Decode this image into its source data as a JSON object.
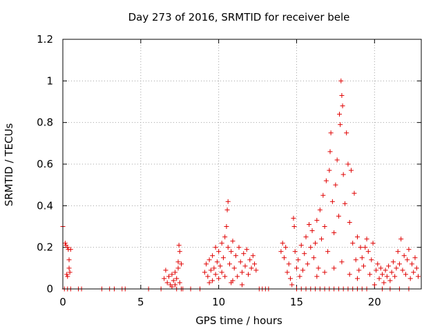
{
  "chart_data": {
    "type": "scatter",
    "title": "Day 273 of 2016, SRMTID for receiver bele",
    "xlabel": "GPS time / hours",
    "ylabel": "SRMTID / TECUs",
    "xlim": [
      0,
      23
    ],
    "ylim": [
      0,
      1.2
    ],
    "xticks": [
      0,
      5,
      10,
      15,
      20
    ],
    "xtick_labels": [
      "0",
      "5",
      "10",
      "15",
      "20"
    ],
    "yticks": [
      0,
      0.2,
      0.4,
      0.6,
      0.8,
      1.0,
      1.2
    ],
    "ytick_labels": [
      "0",
      "0.2",
      "0.4",
      "0.6",
      "0.8",
      "1",
      "1.2"
    ],
    "grid": true,
    "marker": "+",
    "color": "#e00000",
    "series": [
      {
        "name": "SRMTID",
        "points": [
          [
            0.0,
            0.3
          ],
          [
            0.1,
            0.0
          ],
          [
            0.15,
            0.22
          ],
          [
            0.2,
            0.21
          ],
          [
            0.25,
            0.07
          ],
          [
            0.3,
            0.2
          ],
          [
            0.3,
            0.06
          ],
          [
            0.35,
            0.19
          ],
          [
            0.4,
            0.1
          ],
          [
            0.4,
            0.14
          ],
          [
            0.45,
            0.08
          ],
          [
            0.5,
            0.19
          ],
          [
            0.5,
            0.0
          ],
          [
            0.3,
            0.0
          ],
          [
            1.0,
            0.0
          ],
          [
            1.2,
            0.0
          ],
          [
            2.5,
            0.0
          ],
          [
            3.0,
            0.0
          ],
          [
            3.3,
            0.0
          ],
          [
            3.8,
            0.0
          ],
          [
            4.0,
            0.0
          ],
          [
            5.5,
            0.0
          ],
          [
            6.3,
            0.0
          ],
          [
            6.5,
            0.05
          ],
          [
            6.6,
            0.09
          ],
          [
            6.7,
            0.03
          ],
          [
            6.8,
            0.06
          ],
          [
            6.9,
            0.02
          ],
          [
            7.0,
            0.07
          ],
          [
            7.0,
            0.01
          ],
          [
            7.1,
            0.04
          ],
          [
            7.2,
            0.08
          ],
          [
            7.2,
            0.02
          ],
          [
            7.3,
            0.05
          ],
          [
            7.3,
            0.0
          ],
          [
            7.4,
            0.1
          ],
          [
            7.4,
            0.13
          ],
          [
            7.45,
            0.21
          ],
          [
            7.5,
            0.18
          ],
          [
            7.5,
            0.03
          ],
          [
            7.6,
            0.12
          ],
          [
            7.6,
            0.0
          ],
          [
            7.7,
            0.0
          ],
          [
            8.2,
            0.0
          ],
          [
            8.8,
            0.0
          ],
          [
            9.1,
            0.08
          ],
          [
            9.2,
            0.12
          ],
          [
            9.3,
            0.06
          ],
          [
            9.4,
            0.14
          ],
          [
            9.5,
            0.09
          ],
          [
            9.6,
            0.16
          ],
          [
            9.6,
            0.04
          ],
          [
            9.7,
            0.1
          ],
          [
            9.8,
            0.2
          ],
          [
            9.8,
            0.07
          ],
          [
            9.9,
            0.13
          ],
          [
            10.0,
            0.18
          ],
          [
            10.0,
            0.05
          ],
          [
            10.1,
            0.11
          ],
          [
            10.2,
            0.22
          ],
          [
            10.2,
            0.08
          ],
          [
            10.3,
            0.15
          ],
          [
            10.4,
            0.25
          ],
          [
            10.4,
            0.06
          ],
          [
            10.5,
            0.3
          ],
          [
            10.55,
            0.38
          ],
          [
            10.6,
            0.42
          ],
          [
            10.6,
            0.2
          ],
          [
            10.7,
            0.12
          ],
          [
            10.8,
            0.18
          ],
          [
            10.8,
            0.03
          ],
          [
            10.9,
            0.23
          ],
          [
            11.0,
            0.1
          ],
          [
            11.1,
            0.16
          ],
          [
            11.2,
            0.06
          ],
          [
            11.3,
            0.2
          ],
          [
            11.4,
            0.13
          ],
          [
            11.5,
            0.08
          ],
          [
            11.6,
            0.17
          ],
          [
            11.7,
            0.11
          ],
          [
            11.8,
            0.19
          ],
          [
            11.9,
            0.07
          ],
          [
            12.0,
            0.14
          ],
          [
            12.1,
            0.1
          ],
          [
            12.2,
            0.16
          ],
          [
            12.3,
            0.12
          ],
          [
            12.4,
            0.09
          ],
          [
            9.4,
            0.03
          ],
          [
            10.9,
            0.04
          ],
          [
            11.5,
            0.02
          ],
          [
            12.6,
            0.0
          ],
          [
            12.8,
            0.0
          ],
          [
            13.0,
            0.0
          ],
          [
            13.2,
            0.0
          ],
          [
            14.0,
            0.18
          ],
          [
            14.1,
            0.22
          ],
          [
            14.2,
            0.15
          ],
          [
            14.3,
            0.2
          ],
          [
            14.4,
            0.08
          ],
          [
            14.5,
            0.12
          ],
          [
            14.6,
            0.05
          ],
          [
            14.7,
            0.02
          ],
          [
            14.8,
            0.34
          ],
          [
            14.85,
            0.3
          ],
          [
            14.9,
            0.18
          ],
          [
            15.0,
            0.1
          ],
          [
            15.1,
            0.14
          ],
          [
            15.2,
            0.06
          ],
          [
            15.3,
            0.21
          ],
          [
            15.4,
            0.09
          ],
          [
            15.5,
            0.17
          ],
          [
            15.6,
            0.25
          ],
          [
            15.7,
            0.12
          ],
          [
            15.8,
            0.31
          ],
          [
            15.9,
            0.2
          ],
          [
            16.0,
            0.28
          ],
          [
            16.1,
            0.15
          ],
          [
            16.2,
            0.22
          ],
          [
            16.3,
            0.33
          ],
          [
            16.4,
            0.1
          ],
          [
            16.5,
            0.38
          ],
          [
            16.6,
            0.24
          ],
          [
            16.7,
            0.45
          ],
          [
            16.8,
            0.3
          ],
          [
            16.9,
            0.52
          ],
          [
            17.0,
            0.18
          ],
          [
            17.1,
            0.57
          ],
          [
            17.15,
            0.66
          ],
          [
            17.2,
            0.75
          ],
          [
            17.3,
            0.42
          ],
          [
            17.4,
            0.27
          ],
          [
            17.5,
            0.5
          ],
          [
            17.6,
            0.62
          ],
          [
            17.7,
            0.35
          ],
          [
            17.75,
            0.84
          ],
          [
            17.8,
            0.79
          ],
          [
            17.85,
            1.0
          ],
          [
            17.9,
            0.93
          ],
          [
            17.95,
            0.88
          ],
          [
            18.0,
            0.55
          ],
          [
            18.1,
            0.41
          ],
          [
            18.2,
            0.75
          ],
          [
            18.3,
            0.6
          ],
          [
            18.4,
            0.32
          ],
          [
            18.5,
            0.57
          ],
          [
            18.6,
            0.22
          ],
          [
            18.7,
            0.46
          ],
          [
            18.8,
            0.14
          ],
          [
            18.9,
            0.25
          ],
          [
            19.0,
            0.09
          ],
          [
            19.1,
            0.2
          ],
          [
            19.2,
            0.15
          ],
          [
            19.3,
            0.11
          ],
          [
            19.4,
            0.2
          ],
          [
            19.5,
            0.24
          ],
          [
            19.6,
            0.18
          ],
          [
            19.7,
            0.07
          ],
          [
            19.8,
            0.14
          ],
          [
            19.9,
            0.22
          ],
          [
            16.3,
            0.06
          ],
          [
            16.8,
            0.08
          ],
          [
            17.4,
            0.1
          ],
          [
            17.9,
            0.13
          ],
          [
            18.4,
            0.07
          ],
          [
            18.9,
            0.05
          ],
          [
            15.0,
            0.0
          ],
          [
            15.3,
            0.0
          ],
          [
            15.6,
            0.0
          ],
          [
            15.9,
            0.0
          ],
          [
            16.2,
            0.0
          ],
          [
            16.5,
            0.0
          ],
          [
            16.8,
            0.0
          ],
          [
            17.1,
            0.0
          ],
          [
            17.4,
            0.0
          ],
          [
            17.7,
            0.0
          ],
          [
            18.0,
            0.0
          ],
          [
            18.3,
            0.0
          ],
          [
            18.6,
            0.0
          ],
          [
            18.9,
            0.0
          ],
          [
            19.2,
            0.0
          ],
          [
            19.5,
            0.0
          ],
          [
            20.0,
            0.02
          ],
          [
            20.1,
            0.09
          ],
          [
            20.2,
            0.12
          ],
          [
            20.3,
            0.05
          ],
          [
            20.4,
            0.1
          ],
          [
            20.5,
            0.07
          ],
          [
            20.6,
            0.03
          ],
          [
            20.7,
            0.09
          ],
          [
            20.8,
            0.06
          ],
          [
            20.9,
            0.11
          ],
          [
            21.0,
            0.04
          ],
          [
            21.1,
            0.08
          ],
          [
            21.2,
            0.13
          ],
          [
            21.3,
            0.06
          ],
          [
            21.4,
            0.1
          ],
          [
            21.5,
            0.18
          ],
          [
            21.6,
            0.12
          ],
          [
            21.7,
            0.24
          ],
          [
            21.8,
            0.09
          ],
          [
            21.9,
            0.16
          ],
          [
            22.0,
            0.07
          ],
          [
            22.1,
            0.14
          ],
          [
            22.2,
            0.19
          ],
          [
            22.3,
            0.05
          ],
          [
            22.4,
            0.12
          ],
          [
            22.5,
            0.08
          ],
          [
            22.6,
            0.15
          ],
          [
            22.7,
            0.1
          ],
          [
            22.8,
            0.06
          ],
          [
            20.5,
            0.0
          ],
          [
            21.0,
            0.0
          ],
          [
            21.6,
            0.0
          ],
          [
            22.2,
            0.0
          ]
        ]
      }
    ]
  }
}
